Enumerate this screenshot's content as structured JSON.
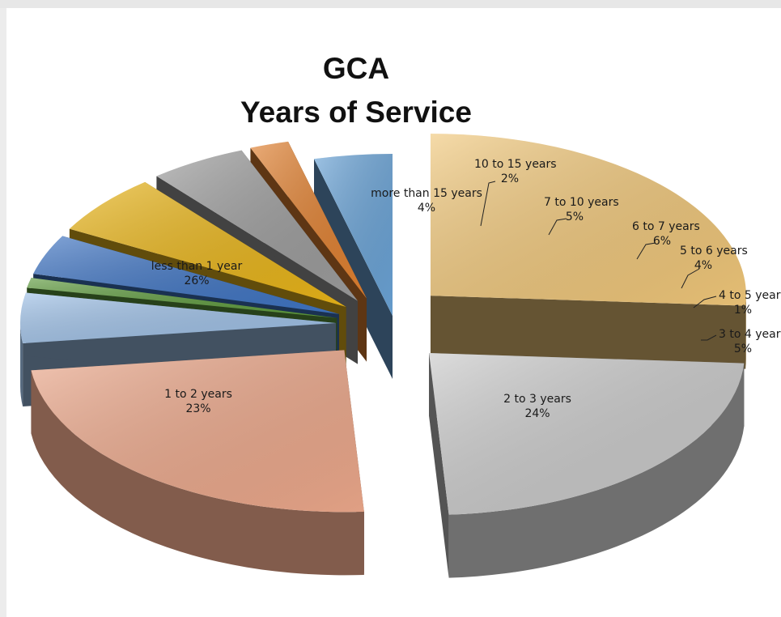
{
  "chart_data": {
    "type": "pie",
    "title": "GCA",
    "subtitle": "Years of Service",
    "slices": [
      {
        "label": "less than 1 year",
        "value": 26,
        "value_label": "26%",
        "color": "#f0c77a"
      },
      {
        "label": "1 to 2 years",
        "value": 23,
        "value_label": "23%",
        "color": "#c9c9c9"
      },
      {
        "label": "2 to 3 years",
        "value": 24,
        "value_label": "24%",
        "color": "#eca88b"
      },
      {
        "label": "3 to 4 years",
        "value": 5,
        "value_label": "5%",
        "color": "#9ec0e6"
      },
      {
        "label": "4 to 5 years",
        "value": 1,
        "value_label": "1%",
        "color": "#5e9a3e"
      },
      {
        "label": "5 to 6 years",
        "value": 4,
        "value_label": "4%",
        "color": "#3f74c2"
      },
      {
        "label": "6 to 7 years",
        "value": 6,
        "value_label": "6%",
        "color": "#e8b419"
      },
      {
        "label": "7 to 10 years",
        "value": 5,
        "value_label": "5%",
        "color": "#9c9c9c"
      },
      {
        "label": "10 to 15 years",
        "value": 2,
        "value_label": "2%",
        "color": "#e08030"
      },
      {
        "label": "more than 15 years",
        "value": 4,
        "value_label": "4%",
        "color": "#6aa3d6"
      }
    ]
  }
}
